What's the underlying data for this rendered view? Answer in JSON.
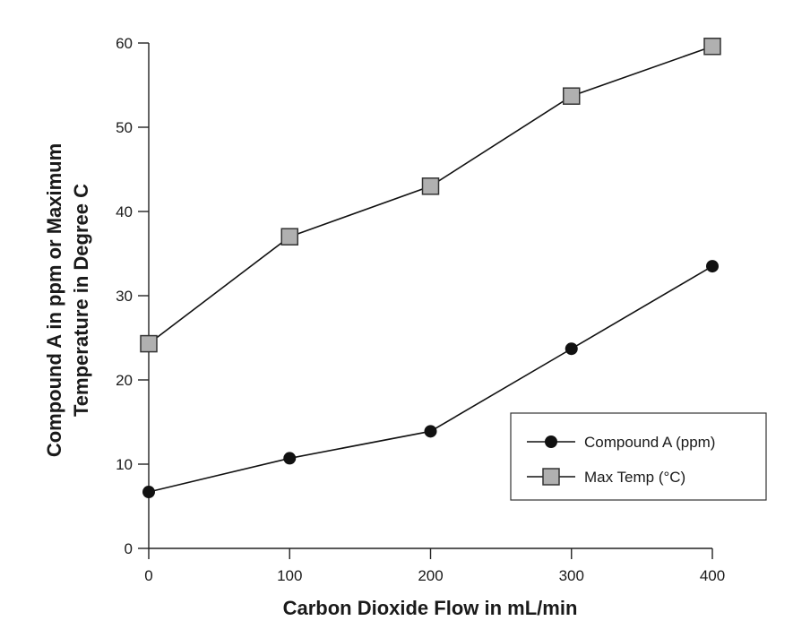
{
  "chart_data": {
    "type": "line",
    "title": "",
    "xlabel": "Carbon Dioxide Flow in mL/min",
    "ylabel_line1": "Compound A in ppm or Maximum",
    "ylabel_line2": "Temperature in Degree C",
    "xlim": [
      0,
      400
    ],
    "ylim": [
      0,
      60
    ],
    "x_ticks": [
      0,
      100,
      200,
      300,
      400
    ],
    "y_ticks": [
      0,
      10,
      20,
      30,
      40,
      50,
      60
    ],
    "x_tick_labels": [
      "0",
      "100",
      "200",
      "300",
      "400"
    ],
    "y_tick_labels": [
      "0",
      "10",
      "20",
      "30",
      "40",
      "50",
      "60"
    ],
    "grid": false,
    "legend_position": "lower-right",
    "x": [
      0,
      100,
      200,
      300,
      400
    ],
    "series": [
      {
        "name": "Compound A (ppm)",
        "marker": "circle",
        "color": "#111111",
        "values": [
          6.7,
          10.7,
          13.9,
          23.7,
          33.5
        ]
      },
      {
        "name": "Max Temp (°C)",
        "marker": "square",
        "color": "#b0b0b0",
        "values": [
          24.3,
          37.0,
          43.0,
          53.7,
          59.6
        ]
      }
    ]
  }
}
